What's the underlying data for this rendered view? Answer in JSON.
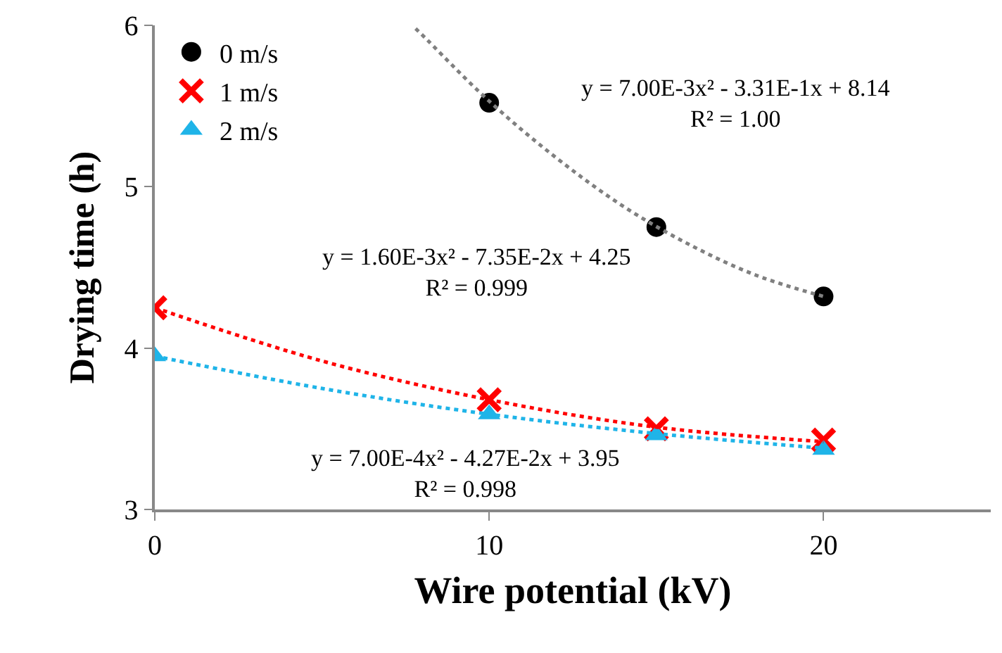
{
  "chart_data": {
    "type": "scatter",
    "xlabel": "Wire potential (kV)",
    "ylabel": "Drying time (h)",
    "xlim": [
      0,
      25
    ],
    "xticks": [
      0,
      10,
      20
    ],
    "ylim": [
      3,
      6
    ],
    "yticks": [
      3,
      4,
      5,
      6
    ],
    "grid": false,
    "legend": "top left",
    "series": [
      {
        "name": "0 m/s",
        "color": "#000000",
        "marker": "circle",
        "x": [
          10,
          15,
          20
        ],
        "values": [
          5.52,
          4.75,
          4.32
        ]
      },
      {
        "name": "1 m/s",
        "color": "#ff0000",
        "marker": "cross",
        "x": [
          0,
          10,
          15,
          20
        ],
        "values": [
          4.25,
          3.68,
          3.5,
          3.43
        ]
      },
      {
        "name": "2 m/s",
        "color": "#1fb4e8",
        "marker": "triangle",
        "x": [
          0,
          10,
          15,
          20
        ],
        "values": [
          3.95,
          3.59,
          3.46,
          3.37
        ]
      },
      {
        "type": "line",
        "color": "#808080",
        "line_style": "dotted",
        "marker": "none",
        "x": [
          7.8,
          8,
          10,
          12,
          14,
          16,
          18,
          20
        ],
        "values": [
          5.98,
          5.94,
          5.53,
          5.18,
          4.88,
          4.64,
          4.45,
          4.32
        ]
      },
      {
        "type": "line",
        "color": "#ff0000",
        "line_style": "dotted",
        "marker": "none",
        "x": [
          0,
          5,
          10,
          15,
          20
        ],
        "values": [
          4.25,
          3.92,
          3.68,
          3.51,
          3.42
        ]
      },
      {
        "type": "line",
        "color": "#1fb4e8",
        "line_style": "dotted",
        "marker": "none",
        "x": [
          0,
          5,
          10,
          15,
          20
        ],
        "values": [
          3.95,
          3.75,
          3.59,
          3.47,
          3.38
        ]
      }
    ],
    "annotations": [
      "y = 7.00E-3x² - 3.31E-1x + 8.14\nR² = 1.00",
      "y = 1.60E-3x² - 7.35E-2x + 4.25\nR² = 0.999",
      "y = 7.00E-4x² - 4.27E-2x + 3.95\nR² = 0.998"
    ]
  }
}
